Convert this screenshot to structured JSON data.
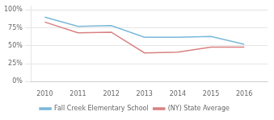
{
  "chart_data": {
    "type": "line",
    "x": [
      2010,
      2011,
      2012,
      2013,
      2014,
      2015,
      2016
    ],
    "series": [
      {
        "name": "Fall Creek Elementary School",
        "color": "#7ab8d9",
        "values": [
          0.9,
          0.77,
          0.78,
          0.62,
          0.62,
          0.63,
          0.52
        ]
      },
      {
        "name": "(NY) State Average",
        "color": "#d98080",
        "values": [
          0.83,
          0.68,
          0.69,
          0.4,
          0.41,
          0.48,
          0.48
        ]
      }
    ],
    "xlim": [
      2009.6,
      2016.7
    ],
    "xticks": [
      2010,
      2011,
      2012,
      2013,
      2014,
      2015,
      2016
    ],
    "ylim": [
      0,
      1.05
    ],
    "yticks": [
      {
        "value": 0,
        "label": "0%"
      },
      {
        "value": 0.25,
        "label": "25%"
      },
      {
        "value": 0.5,
        "label": "50%"
      },
      {
        "value": 0.75,
        "label": "75%"
      },
      {
        "value": 1.0,
        "label": "100%"
      }
    ],
    "grid": "y",
    "legend": "bottom"
  }
}
